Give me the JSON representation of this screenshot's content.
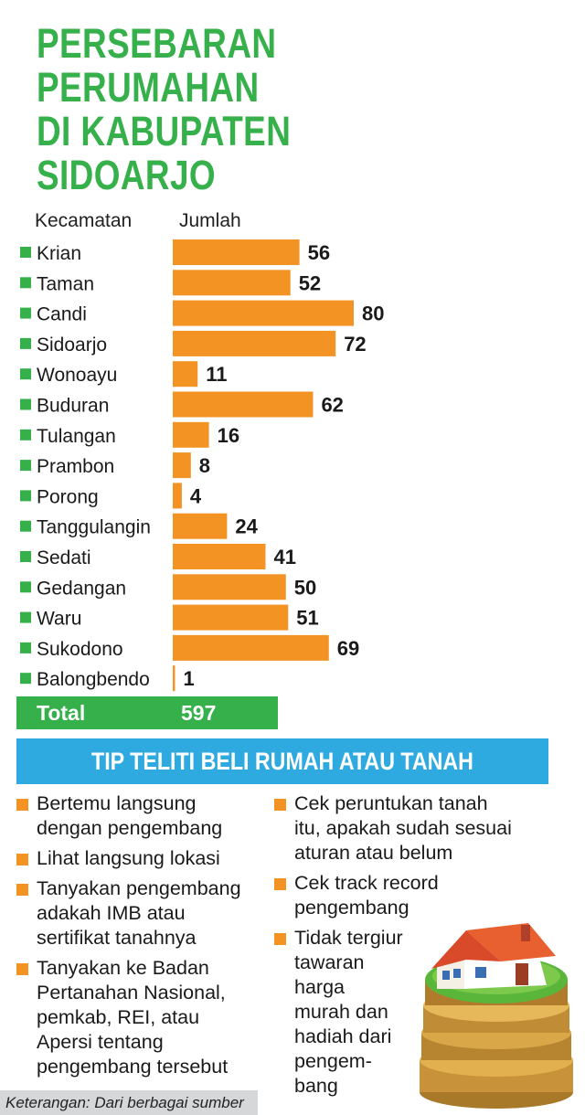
{
  "title_lines": [
    "PERSEBARAN",
    "PERUMAHAN",
    "DI KABUPATEN",
    "SIDOARJO"
  ],
  "col_headers": {
    "district": "Kecamatan",
    "count": "Jumlah"
  },
  "colors": {
    "title": "#35b04a",
    "bar": "#f39324",
    "marker": "#35b04a",
    "total_bg": "#35b04a",
    "banner_bg": "#2eaae1",
    "bullet": "#f39324"
  },
  "chart_data": {
    "type": "bar",
    "orientation": "horizontal",
    "xlabel": "Jumlah",
    "ylabel": "Kecamatan",
    "categories": [
      "Krian",
      "Taman",
      "Candi",
      "Sidoarjo",
      "Wonoayu",
      "Buduran",
      "Tulangan",
      "Prambon",
      "Porong",
      "Tanggulangin",
      "Sedati",
      "Gedangan",
      "Waru",
      "Sukodono",
      "Balongbendo"
    ],
    "values": [
      56,
      52,
      80,
      72,
      11,
      62,
      16,
      8,
      4,
      24,
      41,
      50,
      51,
      69,
      1
    ],
    "xlim": [
      0,
      80
    ]
  },
  "total": {
    "label": "Total",
    "value": "597"
  },
  "tips": {
    "heading": "TIP TELITI BELI RUMAH ATAU TANAH",
    "left": [
      "Bertemu langsung\ndengan pengembang",
      "Lihat langsung lokasi",
      "Tanyakan pengembang\nadakah IMB atau\nsertifikat tanahnya",
      "Tanyakan ke Badan\nPertanahan Nasional,\npemkab, REI, atau\nApersi tentang\npengembang tersebut"
    ],
    "right": [
      "Cek peruntukan tanah\nitu, apakah sudah sesuai\naturan atau belum",
      "Cek track record\npengembang",
      "Tidak tergiur\ntawaran\nharga\nmurah dan\nhadiah dari\npengem-\nbang"
    ]
  },
  "note": "Keterangan: Dari berbagai sumber",
  "illustration": "house-on-coins-icon"
}
